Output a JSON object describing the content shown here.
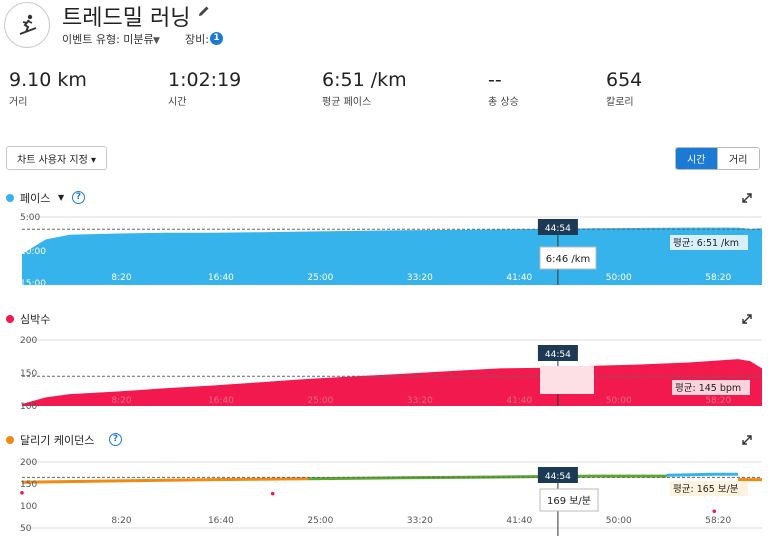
{
  "header": {
    "title": "트레드밀 러닝",
    "event_type": "이벤트 유형: 미분류",
    "gear_label": "장비:",
    "gear_count": "1"
  },
  "stats": [
    {
      "value": "9.10 km",
      "label": "거리"
    },
    {
      "value": "1:02:19",
      "label": "시간"
    },
    {
      "value": "6:51 /km",
      "label": "평균 페이스"
    },
    {
      "value": "--",
      "label": "총 상승"
    },
    {
      "value": "654",
      "label": "칼로리"
    }
  ],
  "toolbar": {
    "customize_label": "차트 사용자 지정 ▾",
    "toggle_time": "시간",
    "toggle_distance": "거리"
  },
  "colors": {
    "pace": "#36b3ea",
    "heart_rate": "#f2194e",
    "cadence": "#f08a13",
    "accent": "#1a7ad4"
  },
  "crosshair": {
    "time": "44:54"
  },
  "chart_data": [
    {
      "type": "area",
      "title": "페이스",
      "y_ticks": [
        "5:00",
        "10:00",
        "15:00"
      ],
      "x_ticks": [
        "8:20",
        "16:40",
        "25:00",
        "33:20",
        "41:40",
        "50:00",
        "58:20"
      ],
      "x_unit": "elapsed time (min)",
      "x": [
        0,
        2,
        4,
        8,
        12,
        16,
        20,
        24,
        28,
        32,
        36,
        40,
        44,
        48,
        52,
        56,
        60,
        61,
        62
      ],
      "y_min_per_km": [
        10.6,
        8.4,
        7.7,
        7.5,
        7.4,
        7.4,
        7.3,
        7.2,
        7.1,
        7.0,
        6.95,
        6.9,
        6.8,
        6.7,
        6.65,
        6.6,
        6.6,
        6.8,
        6.7
      ],
      "ylim": [
        5,
        15
      ],
      "average_label": "평균: 6:51 /km",
      "tooltip": "6:46 /km"
    },
    {
      "type": "area",
      "title": "심박수",
      "y_ticks": [
        "200",
        "150",
        "100"
      ],
      "x_ticks": [
        "8:20",
        "16:40",
        "25:00",
        "33:20",
        "41:40",
        "50:00",
        "58:20"
      ],
      "x": [
        0,
        2,
        4,
        8,
        12,
        16,
        20,
        24,
        28,
        32,
        36,
        40,
        44,
        48,
        52,
        56,
        60,
        61,
        62
      ],
      "y_bpm": [
        103,
        113,
        118,
        122,
        127,
        131,
        136,
        141,
        145,
        149,
        153,
        157,
        158,
        161,
        163,
        166,
        171,
        168,
        157
      ],
      "ylim": [
        100,
        200
      ],
      "average_label": "평균: 145 bpm"
    },
    {
      "type": "line",
      "title": "달리기 케이던스",
      "y_ticks": [
        "200",
        "150",
        "100",
        "50"
      ],
      "x_ticks": [
        "8:20",
        "16:40",
        "25:00",
        "33:20",
        "41:40",
        "50:00",
        "58:20"
      ],
      "series": [
        {
          "color": "#f08a13",
          "x": [
            0,
            8,
            16,
            24
          ],
          "y": [
            154,
            157,
            160,
            162
          ]
        },
        {
          "color": "#5aa82c",
          "x": [
            24,
            32,
            40,
            48,
            54
          ],
          "y": [
            162,
            164,
            166,
            168,
            168
          ]
        },
        {
          "color": "#36b3ea",
          "x": [
            54,
            58,
            60
          ],
          "y": [
            170,
            172,
            172
          ]
        },
        {
          "color": "#f08a13",
          "x": [
            60,
            62
          ],
          "y": [
            160,
            160
          ]
        }
      ],
      "outlier_points": [
        {
          "x": 0,
          "y": 130
        },
        {
          "x": 21,
          "y": 128
        },
        {
          "x": 58,
          "y": 88
        }
      ],
      "ylim": [
        50,
        200
      ],
      "average_label": "평균: 165 보/분",
      "tooltip": "169 보/분"
    }
  ]
}
